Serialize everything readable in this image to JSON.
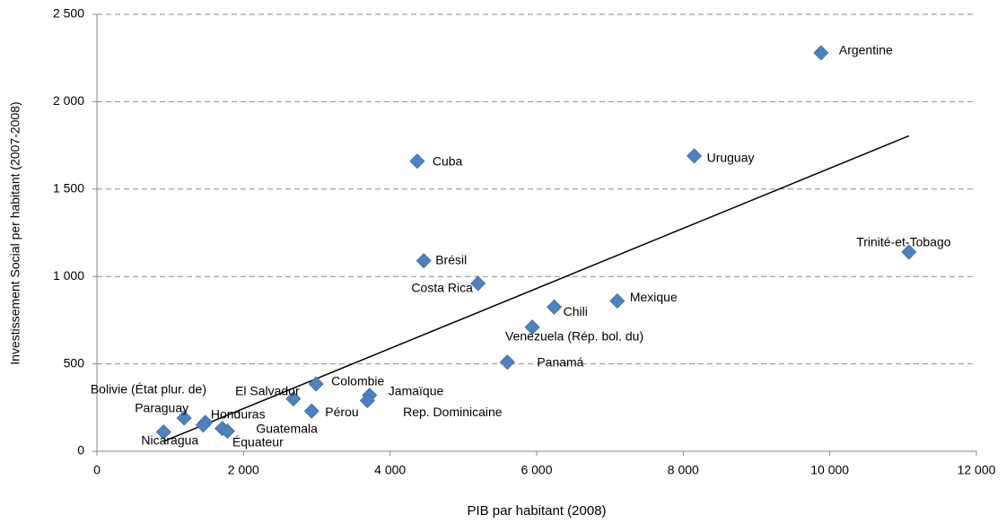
{
  "chart_data": {
    "type": "scatter",
    "xlabel": "PIB par habitant (2008)",
    "ylabel": "Investissement Social per habitant (2007-2008)",
    "color": "#4f81bd",
    "grid": true,
    "xlim": [
      0,
      12000
    ],
    "ylim": [
      0,
      2500
    ],
    "xticks": [
      0,
      {
        "value": 2000,
        "label": "2 000"
      },
      {
        "value": 4000,
        "label": "4 000"
      },
      {
        "value": 6000,
        "label": "6 000"
      },
      {
        "value": 8000,
        "label": "8 000"
      },
      {
        "value": 10000,
        "label": "10 000"
      },
      {
        "value": 12000,
        "label": "12 000"
      }
    ],
    "yticks": [
      0,
      500,
      {
        "value": 1000,
        "label": "1 000"
      },
      {
        "value": 1500,
        "label": "1 500"
      },
      {
        "value": 2000,
        "label": "2 000"
      },
      {
        "value": 2500,
        "label": "2 500"
      }
    ],
    "labels": [
      "Argentine",
      "Uruguay",
      "Cuba",
      "Trinité-et-Tobago",
      "Brésil",
      "Costa Rica",
      "Mexique",
      "Chili",
      "Venezuela (Rép. bol. du)",
      "Panamá",
      "Colombie",
      "Jamaïque",
      "Rep. Dominicaine",
      "El Salvador",
      "Pérou",
      "Nicaragua",
      "Paraguay",
      "Honduras",
      "Bolivie (État plur. de)",
      "Guatemala",
      "Équateur"
    ],
    "x": [
      9880,
      8150,
      4370,
      11080,
      4460,
      5200,
      7100,
      6240,
      5940,
      5600,
      2990,
      3720,
      3690,
      2680,
      2930,
      910,
      1190,
      1480,
      1450,
      1710,
      1780
    ],
    "values": [
      2280,
      1690,
      1660,
      1140,
      1090,
      960,
      860,
      825,
      710,
      510,
      385,
      320,
      290,
      300,
      230,
      110,
      190,
      165,
      150,
      130,
      115
    ],
    "trendline": {
      "x": [
        900,
        11080
      ],
      "values": [
        55,
        1805
      ],
      "color": "#000000"
    }
  }
}
